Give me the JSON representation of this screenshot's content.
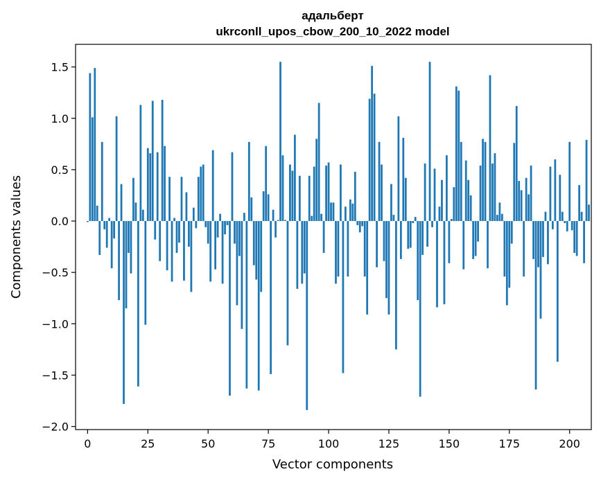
{
  "chart_data": {
    "type": "bar",
    "title_line1": "адальберт",
    "title_line2": "ukrconll_upos_cbow_200_10_2022 model",
    "xlabel": "Vector components",
    "ylabel": "Components values",
    "xlim": [
      -5,
      209
    ],
    "ylim": [
      -2.03,
      1.72
    ],
    "xticks": [
      0,
      25,
      50,
      75,
      100,
      125,
      150,
      175,
      200
    ],
    "yticks": [
      -2.0,
      -1.5,
      -1.0,
      -0.5,
      0.0,
      0.5,
      1.0,
      1.5
    ],
    "ytick_labels": [
      "−2.0",
      "−1.5",
      "−1.0",
      "−0.5",
      "0.0",
      "0.5",
      "1.0",
      "1.5"
    ],
    "bar_color": "#1f77b4",
    "values": [
      -0.01,
      1.44,
      1.01,
      1.49,
      0.15,
      -0.33,
      0.77,
      -0.08,
      -0.26,
      0.03,
      -0.46,
      -0.17,
      1.02,
      -0.77,
      0.36,
      -1.78,
      -0.85,
      -0.31,
      -0.51,
      0.42,
      0.18,
      -1.61,
      1.13,
      0.11,
      -1.01,
      0.71,
      0.66,
      1.17,
      -0.18,
      0.67,
      -0.39,
      1.18,
      0.73,
      -0.48,
      0.43,
      -0.59,
      0.03,
      -0.31,
      -0.21,
      0.43,
      -0.58,
      0.28,
      -0.25,
      -0.69,
      0.13,
      -0.07,
      0.43,
      0.53,
      0.55,
      -0.06,
      -0.22,
      -0.59,
      0.69,
      -0.47,
      -0.16,
      0.07,
      -0.61,
      -0.13,
      -0.04,
      -1.7,
      0.67,
      -0.22,
      -0.82,
      -0.34,
      -1.05,
      0.08,
      -1.63,
      0.77,
      0.23,
      -0.43,
      -0.57,
      -1.65,
      -0.69,
      0.29,
      0.73,
      0.26,
      -1.49,
      0.11,
      -0.16,
      0.01,
      1.55,
      0.64,
      0.01,
      -1.21,
      0.55,
      0.49,
      0.84,
      -0.66,
      0.44,
      -0.61,
      -0.51,
      -1.84,
      0.44,
      0.05,
      0.53,
      0.8,
      1.15,
      0.07,
      -0.31,
      0.54,
      0.57,
      0.18,
      0.18,
      -0.61,
      -0.54,
      0.55,
      -1.48,
      0.14,
      -0.54,
      0.21,
      0.17,
      0.48,
      -0.04,
      -0.11,
      -0.05,
      -0.54,
      -0.91,
      1.19,
      1.51,
      1.24,
      -0.45,
      0.77,
      0.55,
      -0.39,
      -0.75,
      -0.91,
      0.36,
      0.06,
      -1.25,
      1.02,
      -0.37,
      0.81,
      0.42,
      -0.27,
      -0.26,
      -0.02,
      0.04,
      -0.77,
      -1.71,
      -0.33,
      0.56,
      -0.25,
      1.55,
      -0.06,
      0.51,
      -0.84,
      0.14,
      0.4,
      -0.81,
      0.64,
      -0.41,
      0.02,
      0.33,
      1.31,
      1.27,
      0.77,
      -0.47,
      0.59,
      0.4,
      0.25,
      -0.37,
      -0.34,
      -0.2,
      0.54,
      0.8,
      0.77,
      -0.46,
      1.42,
      0.56,
      0.66,
      0.06,
      0.18,
      0.07,
      -0.54,
      -0.82,
      -0.65,
      -0.22,
      0.76,
      1.12,
      0.39,
      0.3,
      -0.54,
      0.42,
      0.26,
      0.54,
      -0.37,
      -1.64,
      -0.45,
      -0.95,
      -0.35,
      0.09,
      -0.42,
      0.53,
      -0.08,
      0.6,
      -1.37,
      0.45,
      0.09,
      -0.02,
      -0.1,
      0.77,
      -0.09,
      -0.31,
      -0.34,
      0.35,
      0.09,
      -0.41,
      0.79,
      0.16
    ]
  }
}
